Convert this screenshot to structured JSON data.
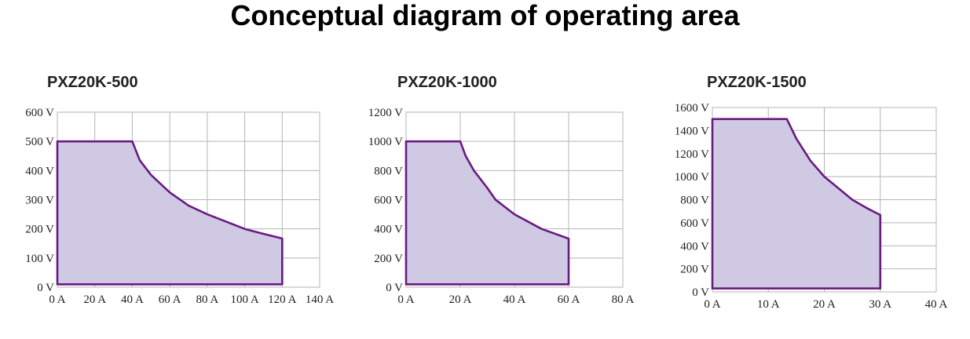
{
  "page": {
    "title": "Conceptual diagram of operating area"
  },
  "colors": {
    "fill": "#cfc9e3",
    "outline": "#6a1a80",
    "grid": "#b5b5b5"
  },
  "chart_data": [
    {
      "type": "area",
      "title": "PXZ20K-500",
      "xlim": [
        0,
        140
      ],
      "ylim": [
        0,
        600
      ],
      "x_ticks": [
        0,
        20,
        40,
        60,
        80,
        100,
        120,
        140
      ],
      "x_tick_labels": [
        "0 A",
        "20 A",
        "40 A",
        "60 A",
        "80 A",
        "100 A",
        "120 A",
        "140 A"
      ],
      "y_ticks": [
        0,
        100,
        200,
        300,
        400,
        500,
        600
      ],
      "y_tick_labels": [
        "0 V",
        "100 V",
        "200 V",
        "300 V",
        "400 V",
        "500 V",
        "600 V"
      ],
      "grid": true,
      "outline": [
        [
          0,
          10
        ],
        [
          0,
          500
        ],
        [
          40,
          500
        ],
        [
          44,
          435
        ],
        [
          50,
          385
        ],
        [
          60,
          325
        ],
        [
          70,
          280
        ],
        [
          80,
          250
        ],
        [
          100,
          200
        ],
        [
          110,
          183
        ],
        [
          120,
          167
        ],
        [
          120,
          10
        ],
        [
          0,
          10
        ]
      ]
    },
    {
      "type": "area",
      "title": "PXZ20K-1000",
      "xlim": [
        0,
        80
      ],
      "ylim": [
        0,
        1200
      ],
      "x_ticks": [
        0,
        20,
        40,
        60,
        80
      ],
      "x_tick_labels": [
        "0 A",
        "20 A",
        "40 A",
        "60 A",
        "80 A"
      ],
      "y_ticks": [
        0,
        200,
        400,
        600,
        800,
        1000,
        1200
      ],
      "y_tick_labels": [
        "0 V",
        "200 V",
        "400 V",
        "600 V",
        "800 V",
        "1000 V",
        "1200 V"
      ],
      "grid": true,
      "outline": [
        [
          0,
          20
        ],
        [
          0,
          1000
        ],
        [
          20,
          1000
        ],
        [
          22,
          900
        ],
        [
          25,
          800
        ],
        [
          30,
          680
        ],
        [
          33,
          600
        ],
        [
          40,
          500
        ],
        [
          50,
          400
        ],
        [
          60,
          333
        ],
        [
          60,
          20
        ],
        [
          0,
          20
        ]
      ]
    },
    {
      "type": "area",
      "title": "PXZ20K-1500",
      "xlim": [
        0,
        40
      ],
      "ylim": [
        0,
        1600
      ],
      "x_ticks": [
        0,
        10,
        20,
        30,
        40
      ],
      "x_tick_labels": [
        "0 A",
        "10 A",
        "20 A",
        "30 A",
        "40 A"
      ],
      "y_ticks": [
        0,
        200,
        400,
        600,
        800,
        1000,
        1200,
        1400,
        1600
      ],
      "y_tick_labels": [
        "0 V",
        "200 V",
        "400 V",
        "600 V",
        "800 V",
        "1000 V",
        "1200 V",
        "1400 V",
        "1600 V"
      ],
      "grid": true,
      "outline": [
        [
          0,
          30
        ],
        [
          0,
          1500
        ],
        [
          13.3,
          1500
        ],
        [
          15,
          1330
        ],
        [
          17.5,
          1140
        ],
        [
          20,
          1000
        ],
        [
          22.5,
          900
        ],
        [
          25,
          800
        ],
        [
          27.5,
          730
        ],
        [
          30,
          667
        ],
        [
          30,
          30
        ],
        [
          0,
          30
        ]
      ]
    }
  ]
}
